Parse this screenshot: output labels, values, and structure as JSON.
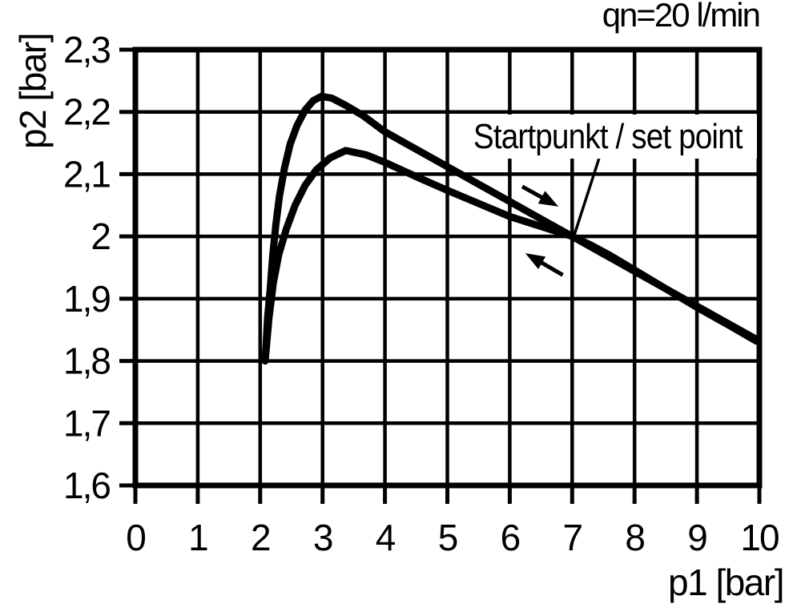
{
  "chart_data": {
    "type": "line",
    "title": "qn=20 l/min",
    "xlabel": "p1 [bar]",
    "ylabel": "p2 [bar]",
    "xlim": [
      0,
      10
    ],
    "ylim": [
      1.6,
      2.3
    ],
    "grid": true,
    "legend": "none",
    "line_color": "#000000",
    "background_color": "#ffffff",
    "x_ticks": [
      {
        "value": 0,
        "label": "0"
      },
      {
        "value": 1,
        "label": "1"
      },
      {
        "value": 2,
        "label": "2"
      },
      {
        "value": 3,
        "label": "3"
      },
      {
        "value": 4,
        "label": "4"
      },
      {
        "value": 5,
        "label": "5"
      },
      {
        "value": 6,
        "label": "6"
      },
      {
        "value": 7,
        "label": "7"
      },
      {
        "value": 8,
        "label": "8"
      },
      {
        "value": 9,
        "label": "9"
      },
      {
        "value": 10,
        "label": "10"
      }
    ],
    "y_ticks": [
      {
        "value": 1.6,
        "label": "1,6"
      },
      {
        "value": 1.7,
        "label": "1,7"
      },
      {
        "value": 1.8,
        "label": "1,8"
      },
      {
        "value": 1.9,
        "label": "1,9"
      },
      {
        "value": 2.0,
        "label": "2"
      },
      {
        "value": 2.1,
        "label": "2,1"
      },
      {
        "value": 2.2,
        "label": "2,2"
      },
      {
        "value": 2.3,
        "label": "2,3"
      }
    ],
    "series": [
      {
        "name": "forward-branch-peak-2.22",
        "points": [
          [
            2.08,
            1.8
          ],
          [
            2.12,
            1.87
          ],
          [
            2.16,
            1.915
          ],
          [
            2.2,
            1.968
          ],
          [
            2.25,
            2.018
          ],
          [
            2.31,
            2.065
          ],
          [
            2.39,
            2.11
          ],
          [
            2.48,
            2.148
          ],
          [
            2.59,
            2.178
          ],
          [
            2.72,
            2.203
          ],
          [
            2.85,
            2.218
          ],
          [
            2.98,
            2.225
          ],
          [
            3.15,
            2.222
          ],
          [
            3.38,
            2.21
          ],
          [
            3.65,
            2.194
          ],
          [
            4.0,
            2.168
          ],
          [
            4.5,
            2.14
          ],
          [
            5.0,
            2.112
          ],
          [
            5.5,
            2.084
          ],
          [
            6.0,
            2.056
          ],
          [
            6.5,
            2.028
          ],
          [
            7.0,
            2.0
          ],
          [
            7.5,
            1.972
          ],
          [
            8.0,
            1.944
          ],
          [
            8.5,
            1.916
          ],
          [
            9.0,
            1.888
          ],
          [
            9.5,
            1.86
          ],
          [
            9.95,
            1.835
          ]
        ]
      },
      {
        "name": "return-branch-peak-2.14",
        "points": [
          [
            2.08,
            1.8
          ],
          [
            2.14,
            1.868
          ],
          [
            2.21,
            1.925
          ],
          [
            2.3,
            1.972
          ],
          [
            2.42,
            2.012
          ],
          [
            2.56,
            2.05
          ],
          [
            2.72,
            2.082
          ],
          [
            2.9,
            2.107
          ],
          [
            3.12,
            2.126
          ],
          [
            3.37,
            2.138
          ],
          [
            3.7,
            2.131
          ],
          [
            4.0,
            2.119
          ],
          [
            4.5,
            2.096
          ],
          [
            5.0,
            2.074
          ],
          [
            5.5,
            2.053
          ],
          [
            6.0,
            2.032
          ],
          [
            6.5,
            2.016
          ],
          [
            7.0,
            2.0
          ],
          [
            7.3,
            1.986
          ],
          [
            7.6,
            1.97
          ],
          [
            8.0,
            1.946
          ],
          [
            8.3,
            1.928
          ],
          [
            9.0,
            1.886
          ],
          [
            9.5,
            1.858
          ],
          [
            9.95,
            1.832
          ]
        ]
      }
    ],
    "annotations": {
      "set_point": {
        "label": "Startpunkt / set point",
        "point": [
          7.04,
          2.004
        ],
        "leader_from": [
          7.43,
          2.125
        ]
      },
      "arrows": [
        {
          "name": "forward-direction-arrow",
          "from": [
            6.2,
            2.08
          ],
          "to": [
            6.78,
            2.048
          ]
        },
        {
          "name": "return-direction-arrow",
          "from": [
            6.85,
            1.938
          ],
          "to": [
            6.25,
            1.973
          ]
        }
      ]
    }
  }
}
